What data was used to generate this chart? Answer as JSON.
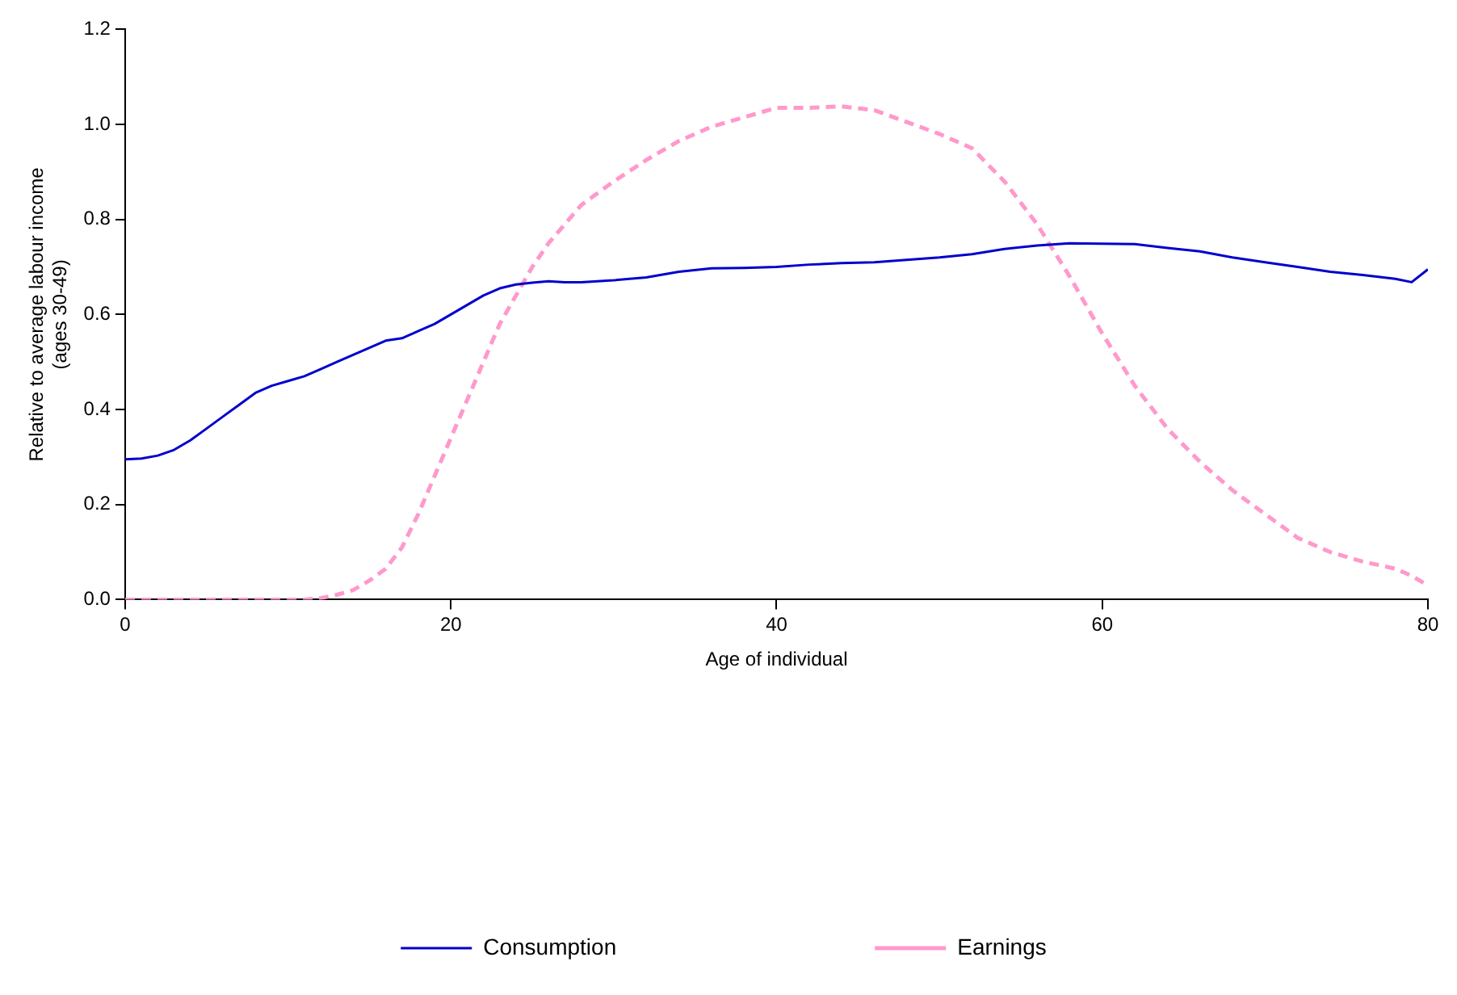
{
  "chart_data": {
    "type": "line",
    "xlabel": "Age of individual",
    "ylabel": "Relative to average labour income\n(ages 30-49)",
    "xlim": [
      0,
      80
    ],
    "xticks": [
      0,
      20,
      40,
      60,
      80
    ],
    "ylim": [
      0,
      1.2
    ],
    "yticks": [
      {
        "value": 0,
        "label": "0.0"
      },
      {
        "value": 0.2,
        "label": "0.2"
      },
      {
        "value": 0.4,
        "label": "0.4"
      },
      {
        "value": 0.6,
        "label": "0.6"
      },
      {
        "value": 0.8,
        "label": "0.8"
      },
      {
        "value": 1,
        "label": "1.0"
      },
      {
        "value": 1.2,
        "label": "1.2"
      }
    ],
    "grid": false,
    "legend": "bottom",
    "marker": "none",
    "series": [
      {
        "name": "Consumption",
        "color": "#0000cc",
        "line_style": "solid",
        "x": [
          0,
          1,
          2,
          3,
          4,
          5,
          6,
          7,
          8,
          9,
          10,
          11,
          12,
          13,
          14,
          15,
          16,
          17,
          18,
          19,
          20,
          21,
          22,
          23,
          24,
          25,
          26,
          27,
          28,
          30,
          32,
          34,
          36,
          38,
          40,
          42,
          44,
          46,
          48,
          50,
          52,
          54,
          56,
          58,
          60,
          62,
          64,
          66,
          68,
          70,
          72,
          74,
          76,
          78,
          79,
          80
        ],
        "values": [
          0.295,
          0.297,
          0.303,
          0.315,
          0.335,
          0.36,
          0.385,
          0.41,
          0.435,
          0.45,
          0.46,
          0.47,
          0.485,
          0.5,
          0.515,
          0.53,
          0.545,
          0.55,
          0.565,
          0.58,
          0.6,
          0.62,
          0.64,
          0.655,
          0.663,
          0.667,
          0.67,
          0.668,
          0.668,
          0.672,
          0.678,
          0.69,
          0.697,
          0.698,
          0.7,
          0.705,
          0.708,
          0.71,
          0.715,
          0.72,
          0.727,
          0.738,
          0.745,
          0.75,
          0.749,
          0.748,
          0.74,
          0.733,
          0.72,
          0.71,
          0.7,
          0.69,
          0.683,
          0.675,
          0.668,
          0.695
        ]
      },
      {
        "name": "Earnings",
        "color": "#ff99cc",
        "line_style": "dashed",
        "x": [
          0,
          2,
          4,
          6,
          8,
          10,
          11,
          12,
          13,
          14,
          15,
          16,
          17,
          18,
          19,
          20,
          21,
          22,
          23,
          24,
          25,
          26,
          27,
          28,
          30,
          32,
          34,
          36,
          38,
          40,
          42,
          44,
          46,
          48,
          50,
          52,
          54,
          56,
          58,
          60,
          62,
          64,
          66,
          68,
          70,
          72,
          74,
          76,
          78,
          79,
          80
        ],
        "values": [
          0,
          0,
          0,
          0,
          0,
          0,
          0,
          0.003,
          0.01,
          0.02,
          0.04,
          0.065,
          0.11,
          0.18,
          0.26,
          0.34,
          0.42,
          0.5,
          0.58,
          0.64,
          0.7,
          0.75,
          0.79,
          0.83,
          0.88,
          0.925,
          0.965,
          0.995,
          1.015,
          1.035,
          1.035,
          1.038,
          1.03,
          1.005,
          0.98,
          0.95,
          0.88,
          0.79,
          0.68,
          0.56,
          0.45,
          0.36,
          0.29,
          0.23,
          0.18,
          0.13,
          0.1,
          0.08,
          0.065,
          0.05,
          0.03
        ]
      }
    ]
  }
}
